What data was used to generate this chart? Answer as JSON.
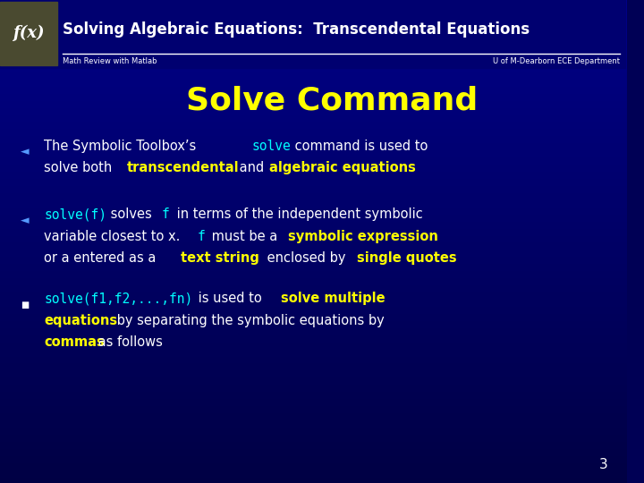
{
  "title": "Solving Algebraic Equations:  Transcendental Equations",
  "subtitle_left": "Math Review with Matlab",
  "subtitle_right": "U of M-Dearborn ECE Department",
  "slide_title": "Solve Command",
  "title_color": "#ffffff",
  "slide_title_color": "#ffff00",
  "white_text": "#ffffff",
  "cyan_code": "#00ffff",
  "yellow_bold": "#ffff00",
  "page_number": "3",
  "bg_dark": "#000055",
  "bg_mid": "#000088",
  "header_bg": "#000080",
  "fx_box_color": "#4a4a30"
}
